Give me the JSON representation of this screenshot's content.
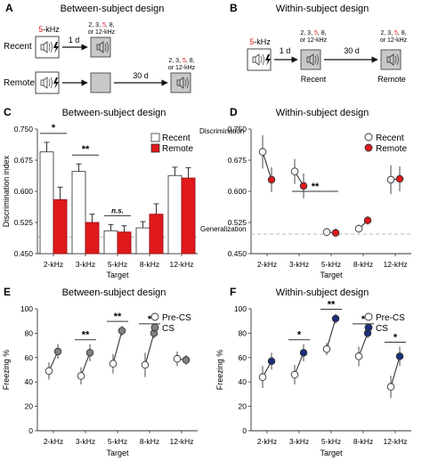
{
  "panels": {
    "A": {
      "letter": "A",
      "title": "Between-subject design",
      "train_prefix": "5",
      "train_suffix": "-kHz",
      "rows": [
        "Recent",
        "Remote"
      ],
      "delay_recent": "1 d",
      "delay_remote": "30 d",
      "test_line1_a": "2, 3, ",
      "test_line1_b": "5",
      "test_line1_c": ", 8,",
      "test_line2": "or 12-kHz"
    },
    "B": {
      "letter": "B",
      "title": "Within-subject design",
      "train_prefix": "5",
      "train_suffix": "-kHz",
      "delay_1": "1 d",
      "delay_2": "30 d",
      "test_line1_a": "2, 3, ",
      "test_line1_b": "5",
      "test_line1_c": ", 8,",
      "test_line2": "or 12-kHz",
      "labels": [
        "Recent",
        "Remote"
      ]
    }
  },
  "colors": {
    "accent_red": "#e0191b",
    "navy": "#1a2f7a",
    "gray_box": "#c8c8c8",
    "dark_gray": "#808080"
  },
  "chart_data": [
    {
      "id": "C",
      "letter": "C",
      "type": "bar",
      "title": "Between-subject design",
      "categories": [
        "2-kHz",
        "3-kHz",
        "5-kHz",
        "8-kHz",
        "12-kHz"
      ],
      "xlabel": "Target",
      "ylabel": "Discrimination index",
      "ylim": [
        0.45,
        0.75
      ],
      "yticks": [
        "0.450",
        "0.525",
        "0.600",
        "0.675",
        "0.750"
      ],
      "reference_line": 0.49,
      "series": [
        {
          "name": "Recent",
          "color": "#ffffff",
          "values": [
            0.695,
            0.648,
            0.505,
            0.512,
            0.638
          ],
          "errors": [
            0.023,
            0.018,
            0.015,
            0.015,
            0.02
          ]
        },
        {
          "name": "Remote",
          "color": "#e0191b",
          "values": [
            0.58,
            0.525,
            0.502,
            0.545,
            0.632
          ],
          "errors": [
            0.03,
            0.02,
            0.015,
            0.025,
            0.025
          ]
        }
      ],
      "significance": [
        {
          "category": 0,
          "label": "*"
        },
        {
          "category": 1,
          "label": "**"
        },
        {
          "category": 2,
          "label": "n.s."
        }
      ],
      "legend": "top-right",
      "grid": false
    },
    {
      "id": "D",
      "letter": "D",
      "type": "line",
      "title": "Within-subject design",
      "categories": [
        "2-kHz",
        "3-kHz",
        "5-kHz",
        "8-kHz",
        "12-kHz"
      ],
      "xlabel": "Target",
      "ylabel": "",
      "ylim": [
        0.45,
        0.75
      ],
      "yticks": [
        "0.450",
        "0.525",
        "0.600",
        "0.675",
        "0.750"
      ],
      "reference_line": 0.497,
      "top_label": "Discrimination",
      "bottom_label": "Generalization",
      "series": [
        {
          "name": "Recent",
          "color": "#ffffff",
          "values": [
            0.695,
            0.648,
            0.502,
            0.51,
            0.628
          ],
          "errors": [
            0.04,
            0.03,
            0.01,
            0.01,
            0.035
          ]
        },
        {
          "name": "Remote",
          "color": "#e0191b",
          "values": [
            0.628,
            0.613,
            0.5,
            0.53,
            0.63
          ],
          "errors": [
            0.03,
            0.03,
            0.01,
            0.01,
            0.03
          ]
        }
      ],
      "significance": [
        {
          "from": 1,
          "to": 2,
          "label": "**"
        }
      ],
      "legend": "top-right",
      "grid": false
    },
    {
      "id": "E",
      "letter": "E",
      "type": "line",
      "title": "Between-subject design",
      "categories": [
        "2-kHz",
        "3-kHz",
        "5-kHz",
        "8-kHz",
        "12-kHz"
      ],
      "xlabel": "Target",
      "ylabel": "Freezing %",
      "ylim": [
        0,
        100
      ],
      "yticks": [
        "0",
        "20",
        "40",
        "60",
        "80",
        "100"
      ],
      "series": [
        {
          "name": "Pre-CS",
          "color": "#ffffff",
          "values": [
            49,
            45,
            55,
            54,
            59
          ],
          "errors": [
            7,
            7,
            8,
            10,
            6
          ]
        },
        {
          "name": "CS",
          "color": "#808080",
          "values": [
            65,
            64,
            82,
            80,
            58
          ],
          "errors": [
            6,
            7,
            4,
            4,
            4
          ]
        }
      ],
      "significance": [
        {
          "category": 1,
          "label": "**"
        },
        {
          "category": 2,
          "label": "**"
        },
        {
          "category": 3,
          "label": "*"
        }
      ],
      "legend": "top-right",
      "grid": false
    },
    {
      "id": "F",
      "letter": "F",
      "type": "line",
      "title": "Within-subject design",
      "categories": [
        "2-kHz",
        "3-kHz",
        "5-kHz",
        "8-kHz",
        "12-kHz"
      ],
      "xlabel": "Target",
      "ylabel": "Freezing %",
      "ylim": [
        0,
        100
      ],
      "yticks": [
        "0",
        "20",
        "40",
        "60",
        "80",
        "100"
      ],
      "series": [
        {
          "name": "Pre-CS",
          "color": "#ffffff",
          "values": [
            44,
            46,
            67,
            61,
            36
          ],
          "errors": [
            9,
            8,
            5,
            8,
            9
          ]
        },
        {
          "name": "CS",
          "color": "#1a2f7a",
          "values": [
            57,
            64,
            92,
            80,
            61
          ],
          "errors": [
            7,
            7,
            4,
            4,
            8
          ]
        }
      ],
      "significance": [
        {
          "category": 1,
          "label": "*"
        },
        {
          "category": 2,
          "label": "**"
        },
        {
          "category": 3,
          "label": "*"
        },
        {
          "category": 4,
          "label": "*"
        }
      ],
      "legend": "top-right",
      "grid": false
    }
  ]
}
